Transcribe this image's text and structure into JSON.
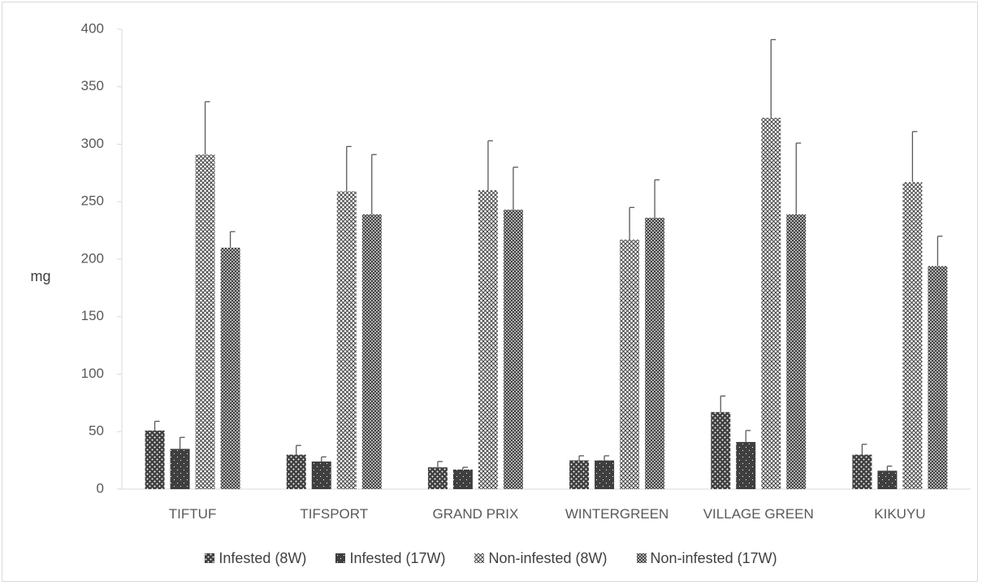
{
  "chart_data": {
    "type": "bar",
    "title": "",
    "xlabel": "",
    "ylabel": "mg",
    "ylim": [
      0,
      400
    ],
    "yticks": [
      0,
      50,
      100,
      150,
      200,
      250,
      300,
      350,
      400
    ],
    "grid": false,
    "legend_position": "bottom",
    "error_bars": true,
    "categories": [
      "TIFTUF",
      "TIFSPORT",
      "GRAND PRIX",
      "WINTERGREEN",
      "VILLAGE GREEN",
      "KIKUYU"
    ],
    "series": [
      {
        "name": "Infested (8W)",
        "pattern": "dotted-dark",
        "values": [
          51,
          30,
          19,
          25,
          67,
          30
        ],
        "errors": [
          8,
          8,
          5,
          4,
          14,
          9
        ]
      },
      {
        "name": "Infested (17W)",
        "pattern": "dark-sparse",
        "values": [
          35,
          24,
          17,
          25,
          41,
          16
        ],
        "errors": [
          10,
          4,
          2,
          4,
          10,
          4
        ]
      },
      {
        "name": "Non-infested (8W)",
        "pattern": "crosshatch-light",
        "values": [
          291,
          259,
          260,
          217,
          323,
          267
        ],
        "errors": [
          46,
          39,
          43,
          28,
          68,
          44
        ]
      },
      {
        "name": "Non-infested (17W)",
        "pattern": "crosshatch-medium",
        "values": [
          210,
          239,
          243,
          236,
          239,
          194
        ],
        "errors": [
          14,
          52,
          37,
          33,
          62,
          26
        ]
      }
    ],
    "colors": {
      "axis": "#d9d9d9",
      "text": "#595959",
      "error_bar": "#595959",
      "fill_dark": "#3f3f3f",
      "fill_light": "#ffffff"
    }
  }
}
